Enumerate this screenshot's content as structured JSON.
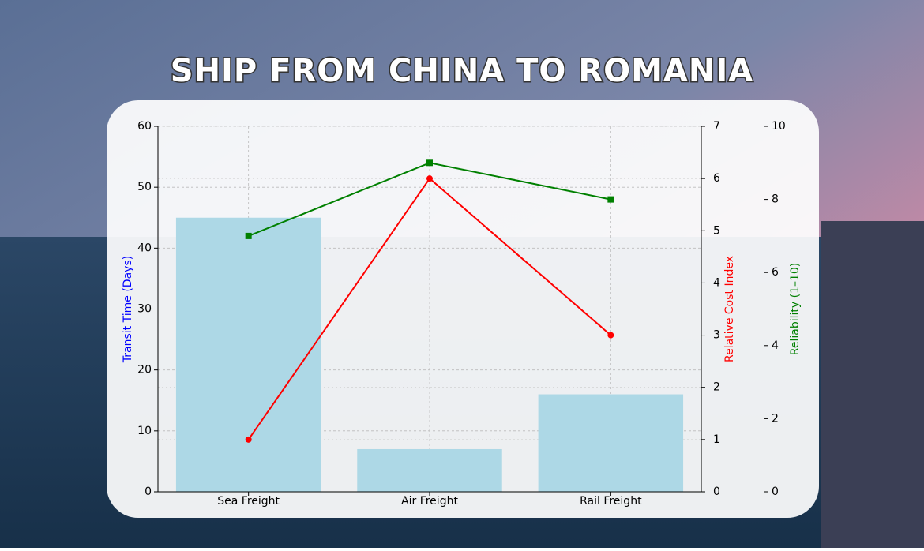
{
  "chart_data": {
    "title": "SHIP FROM CHINA TO ROMANIA",
    "categories": [
      "Sea Freight",
      "Air Freight",
      "Rail Freight"
    ],
    "y_label": "Transit Time (Days)",
    "y2_label": "Relative Cost Index",
    "y3_label": "Reliability (1–10)",
    "ylim": [
      0,
      60
    ],
    "yticks": [
      0,
      10,
      20,
      30,
      40,
      50,
      60
    ],
    "y2lim": [
      0,
      7
    ],
    "y2ticks": [
      0,
      1,
      2,
      3,
      4,
      5,
      6,
      7
    ],
    "y3lim": [
      0,
      10
    ],
    "y3ticks": [
      0,
      2,
      4,
      6,
      8,
      10
    ],
    "grid": true,
    "series": [
      {
        "name": "Transit Time (Days)",
        "type": "bar",
        "color": "#add8e6",
        "values": [
          45,
          7,
          16
        ]
      },
      {
        "name": "Relative Cost Index",
        "type": "line",
        "axis": "y2",
        "color": "#ff0000",
        "marker": "circle",
        "values": [
          1,
          6,
          3
        ]
      },
      {
        "name": "Reliability (1–10)",
        "type": "line",
        "axis": "y3",
        "color": "#008000",
        "marker": "square",
        "values": [
          7,
          9,
          8
        ]
      }
    ]
  }
}
